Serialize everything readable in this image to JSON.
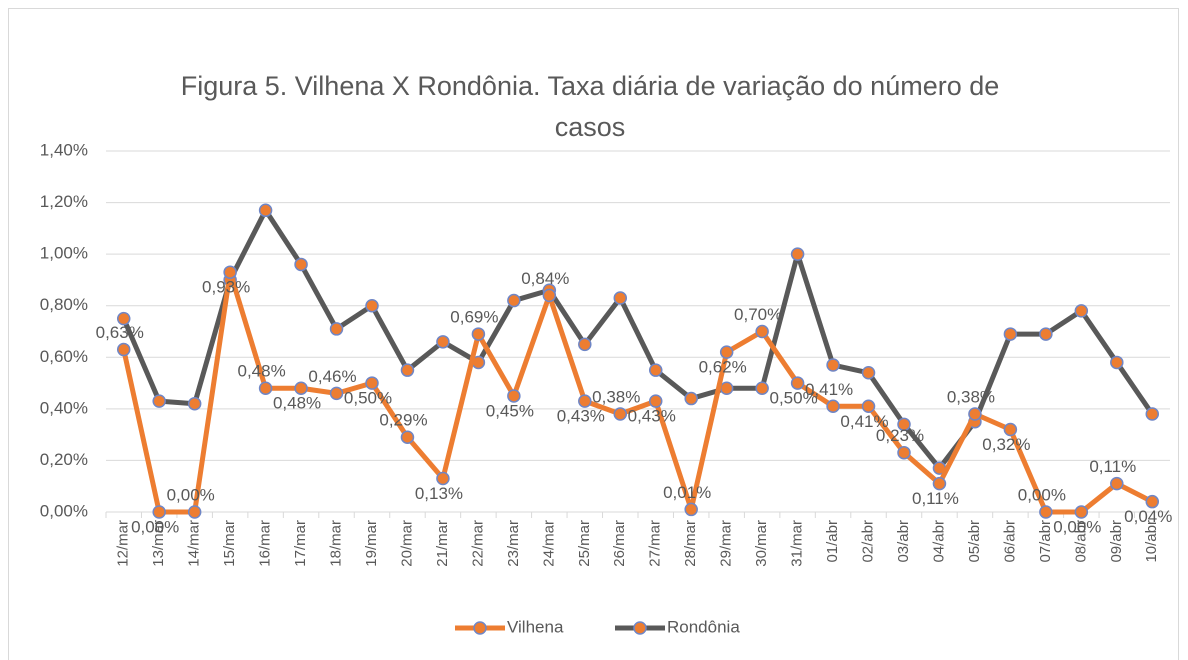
{
  "chart_data": {
    "type": "line",
    "title": "Figura 5. Vilhena X Rondônia. Taxa diária de variação do número de casos",
    "categories": [
      "12/mar",
      "13/mar",
      "14/mar",
      "15/mar",
      "16/mar",
      "17/mar",
      "18/mar",
      "19/mar",
      "20/mar",
      "21/mar",
      "22/mar",
      "23/mar",
      "24/mar",
      "25/mar",
      "26/mar",
      "27/mar",
      "28/mar",
      "29/mar",
      "30/mar",
      "31/mar",
      "01/abr",
      "02/abr",
      "03/abr",
      "04/abr",
      "05/abr",
      "06/abr",
      "07/abr",
      "08/abr",
      "09/abr",
      "10/abr"
    ],
    "series": [
      {
        "name": "Vilhena",
        "color": "#ed7d31",
        "values": [
          0.63,
          0,
          0,
          0.93,
          0.48,
          0.48,
          0.46,
          0.5,
          0.29,
          0.13,
          0.69,
          0.45,
          0.84,
          0.43,
          0.38,
          0.43,
          0.01,
          0.62,
          0.7,
          0.5,
          0.41,
          0.41,
          0.23,
          0.11,
          0.38,
          0.32,
          0,
          0,
          0.11,
          0.04
        ],
        "value_labels": [
          "0,63%",
          "0,00%",
          "0,00%",
          "0,93%",
          "0,48%",
          "0,48%",
          "0,46%",
          "0,50%",
          "0,29%",
          "0,13%",
          "0,69%",
          "0,45%",
          "0,84%",
          "0,43%",
          "0,38%",
          "0,43%",
          "0,01%",
          "0,62%",
          "0,70%",
          "0,50%",
          "0,41%",
          "0,41%",
          "0,23%",
          "0,11%",
          "0,38%",
          "0,32%",
          "0,00%",
          "0,00%",
          "0,11%",
          "0,04%"
        ]
      },
      {
        "name": "Rondônia",
        "color": "#595959",
        "values": [
          0.75,
          0.43,
          0.42,
          0.9,
          1.17,
          0.96,
          0.71,
          0.8,
          0.55,
          0.66,
          0.58,
          0.82,
          0.86,
          0.65,
          0.83,
          0.55,
          0.44,
          0.48,
          0.48,
          1.0,
          0.57,
          0.54,
          0.34,
          0.17,
          0.35,
          0.69,
          0.69,
          0.78,
          0.58,
          0.38
        ]
      }
    ],
    "ylim": [
      0,
      1.4
    ],
    "yticks": [
      {
        "value": 0,
        "label": "0,00%"
      },
      {
        "value": 0.2,
        "label": "0,20%"
      },
      {
        "value": 0.4,
        "label": "0,40%"
      },
      {
        "value": 0.6,
        "label": "0,60%"
      },
      {
        "value": 0.8,
        "label": "0,80%"
      },
      {
        "value": 1.0,
        "label": "1,00%"
      },
      {
        "value": 1.2,
        "label": "1,20%"
      },
      {
        "value": 1.4,
        "label": "1,40%"
      }
    ],
    "grid": true,
    "legend": "bottom"
  }
}
